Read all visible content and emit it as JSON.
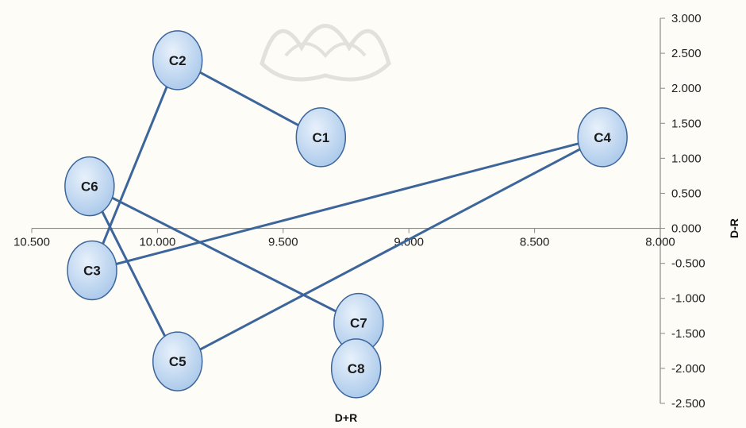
{
  "chart_data": {
    "type": "scatter",
    "xlabel": "D+R",
    "ylabel": "D-R",
    "xlim": [
      8.0,
      10.5
    ],
    "ylim": [
      -2.5,
      3.0
    ],
    "x_reversed": true,
    "x_ticks": [
      "10.500",
      "10.000",
      "9.500",
      "9.000",
      "8.500",
      "8.000"
    ],
    "y_ticks": [
      "3.000",
      "2.500",
      "2.000",
      "1.500",
      "1.000",
      "0.500",
      "0.000",
      "-0.500",
      "-1.000",
      "-1.500",
      "-2.000",
      "-2.500"
    ],
    "grid": false,
    "marker_color": "#a9c8ea",
    "line_color": "#3c659b",
    "points": [
      {
        "label": "C1",
        "x": 9.35,
        "y": 1.3
      },
      {
        "label": "C2",
        "x": 9.92,
        "y": 2.4
      },
      {
        "label": "C3",
        "x": 10.26,
        "y": -0.6
      },
      {
        "label": "C4",
        "x": 8.23,
        "y": 1.3
      },
      {
        "label": "C5",
        "x": 9.92,
        "y": -1.9
      },
      {
        "label": "C6",
        "x": 10.27,
        "y": 0.6
      },
      {
        "label": "C7",
        "x": 9.2,
        "y": -1.35
      },
      {
        "label": "C8",
        "x": 9.21,
        "y": -2.0
      }
    ],
    "links": [
      [
        "C2",
        "C1"
      ],
      [
        "C2",
        "C3"
      ],
      [
        "C3",
        "C4"
      ],
      [
        "C5",
        "C4"
      ],
      [
        "C6",
        "C5"
      ],
      [
        "C6",
        "C7"
      ]
    ]
  }
}
